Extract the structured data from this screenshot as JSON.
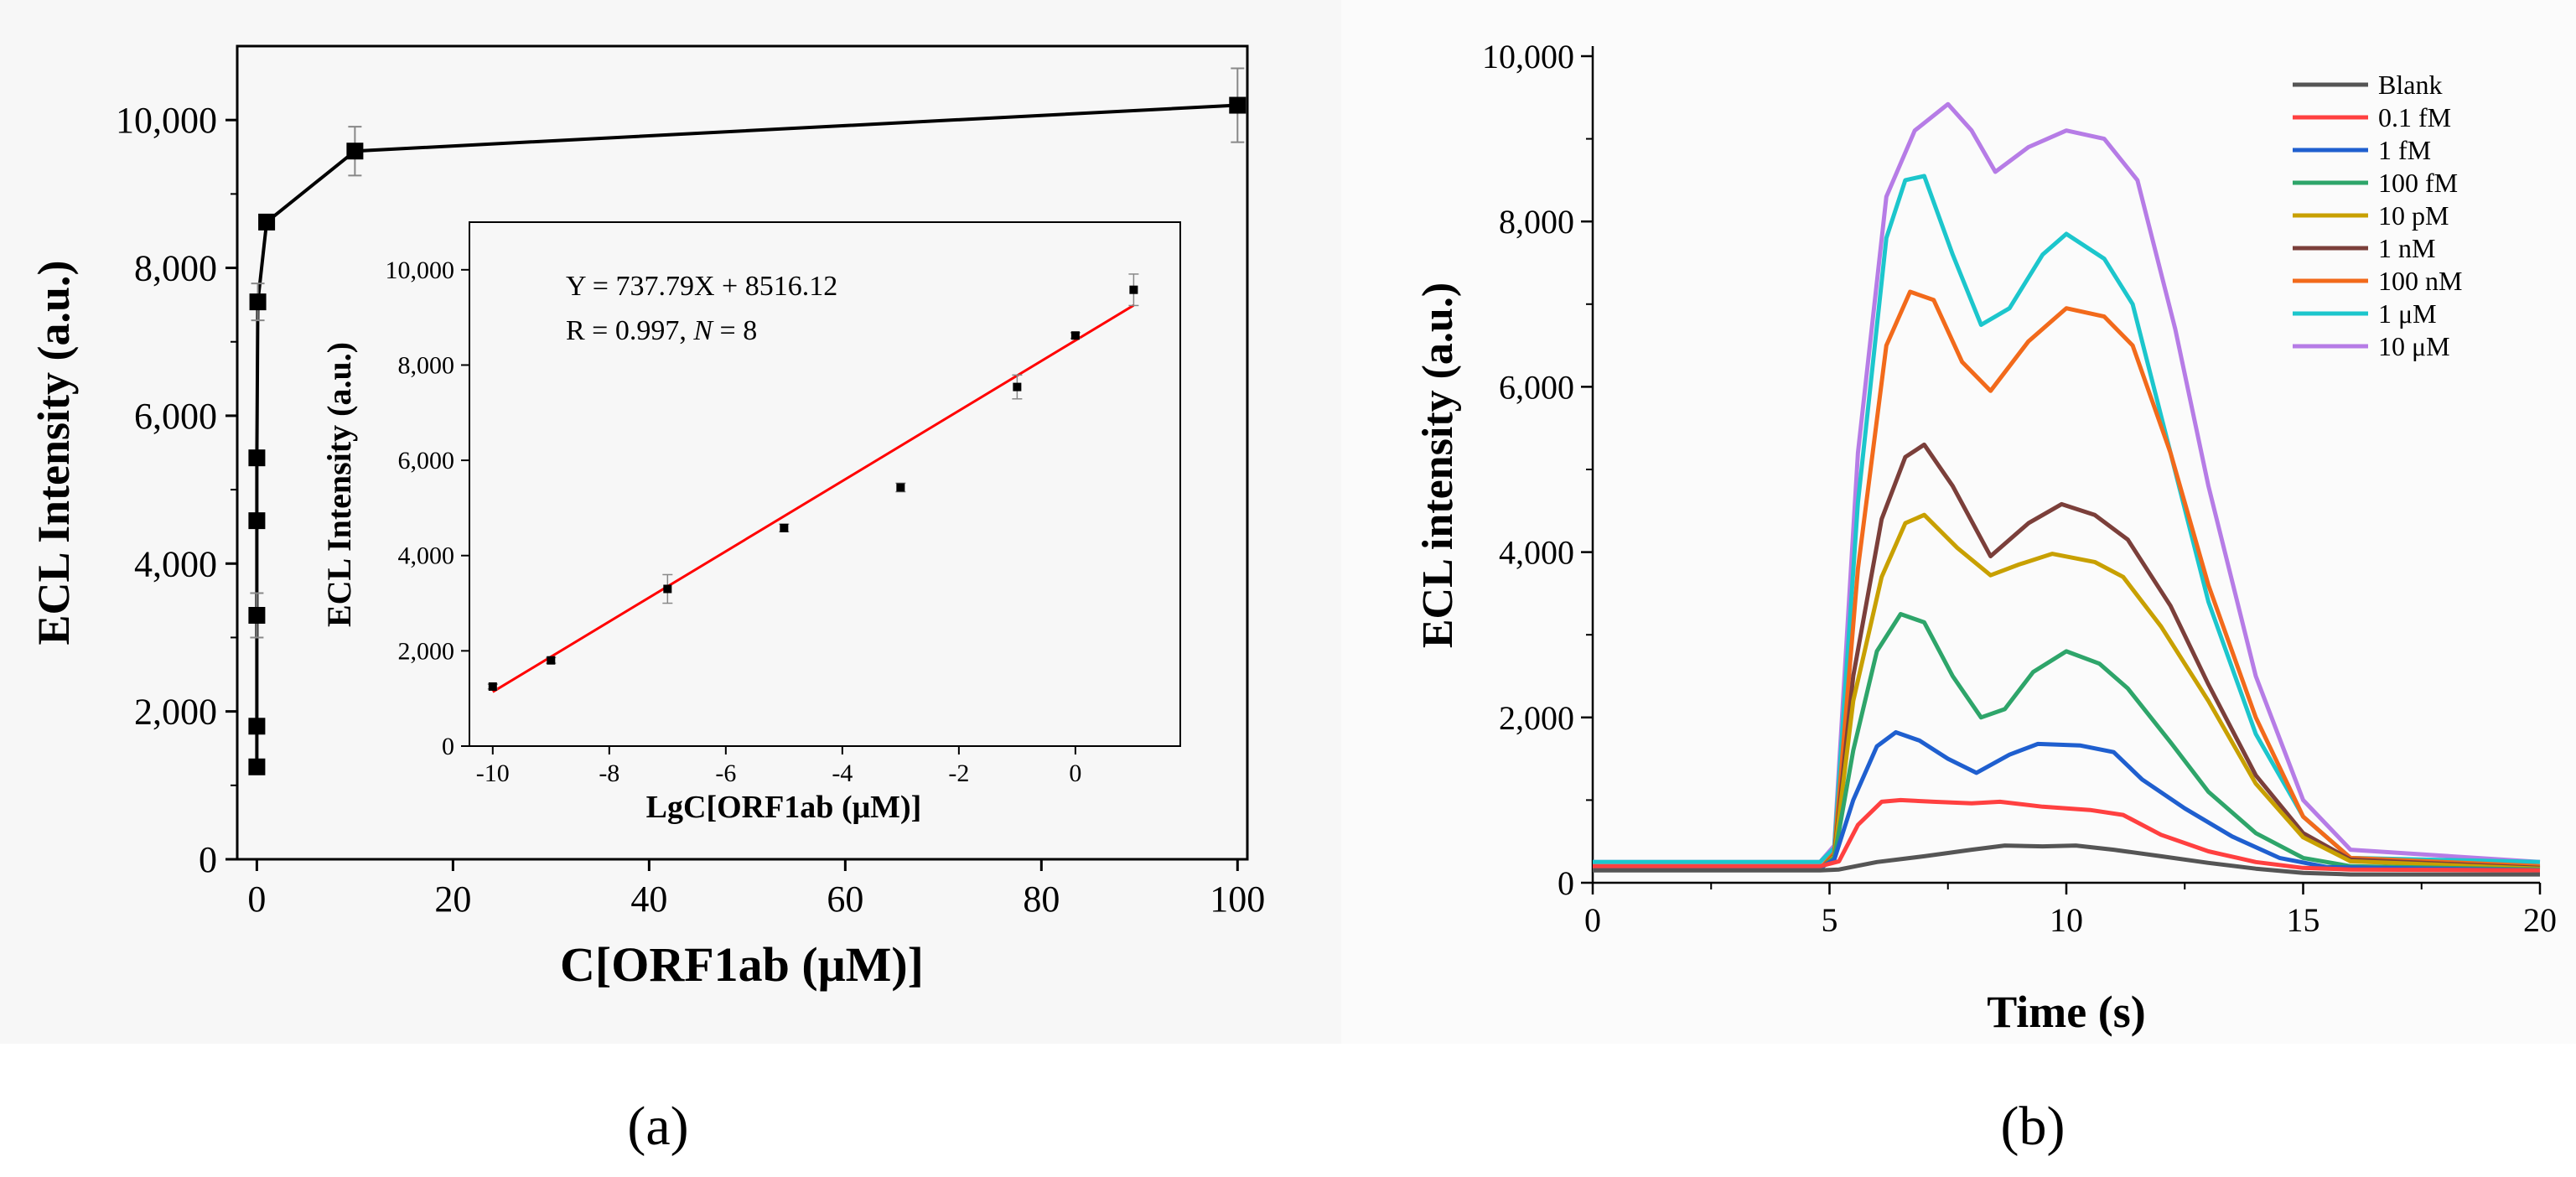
{
  "panel_labels": {
    "a": "(a)",
    "b": "(b)"
  },
  "chart_data": [
    {
      "id": "a-main",
      "type": "line",
      "xlabel": "C[ORF1ab (μM)]",
      "ylabel": "ECL Intensity (a.u.)",
      "xlim": [
        -2,
        101
      ],
      "ylim": [
        0,
        11000
      ],
      "xticks": [
        0,
        20,
        40,
        60,
        80,
        100
      ],
      "yticks": [
        0,
        2000,
        4000,
        6000,
        8000,
        10000
      ],
      "xtick_labels": [
        "0",
        "20",
        "40",
        "60",
        "80",
        "100"
      ],
      "ytick_labels": [
        "0",
        "2,000",
        "4,000",
        "6,000",
        "8,000",
        "10,000"
      ],
      "marker": "square",
      "color": "#000000",
      "x": [
        1e-10,
        1e-09,
        1e-07,
        1e-05,
        0.001,
        0.1,
        1,
        10,
        100
      ],
      "y": [
        1250,
        1800,
        3300,
        4580,
        5430,
        7540,
        8620,
        9580,
        10200
      ],
      "errors": [
        50,
        60,
        300,
        80,
        90,
        250,
        60,
        330,
        500
      ]
    },
    {
      "id": "a-inset",
      "type": "scatter",
      "xlabel": "LgC[ORF1ab (μM)]",
      "ylabel": "ECL Intensity (a.u.)",
      "xlim": [
        -10.4,
        1.8
      ],
      "ylim": [
        0,
        11000
      ],
      "xticks": [
        -10,
        -8,
        -6,
        -4,
        -2,
        0
      ],
      "yticks": [
        0,
        2000,
        4000,
        6000,
        8000,
        10000
      ],
      "xtick_labels": [
        "-10",
        "-8",
        "-6",
        "-4",
        "-2",
        "0"
      ],
      "ytick_labels": [
        "0",
        "2,000",
        "4,000",
        "6,000",
        "8,000",
        "10,000"
      ],
      "x": [
        -10,
        -9,
        -7,
        -5,
        -3,
        -1,
        0,
        1
      ],
      "y": [
        1250,
        1800,
        3300,
        4580,
        5430,
        7540,
        8620,
        9580
      ],
      "errors": [
        50,
        60,
        300,
        80,
        90,
        250,
        60,
        330
      ],
      "fit": {
        "slope": 737.79,
        "intercept": 8516.12,
        "x_range": [
          -10,
          1
        ],
        "color": "#ff0000"
      },
      "annotations": {
        "equation": "Y = 737.79X + 8516.12",
        "r_prefix": "R = 0.997, ",
        "r_var": "N",
        "r_suffix": " = 8"
      }
    },
    {
      "id": "b",
      "type": "line",
      "xlabel": "Time (s)",
      "ylabel": "ECL intensity (a.u.)",
      "xlim": [
        0,
        20
      ],
      "ylim": [
        0,
        10000
      ],
      "xticks": [
        0,
        5,
        10,
        15,
        20
      ],
      "yticks": [
        0,
        2000,
        4000,
        6000,
        8000,
        10000
      ],
      "xtick_labels": [
        "0",
        "5",
        "10",
        "15",
        "20"
      ],
      "ytick_labels": [
        "0",
        "2,000",
        "4,000",
        "6,000",
        "8,000",
        "10,000"
      ],
      "legend_position": "top-right",
      "series": [
        {
          "name": "Blank",
          "color": "#555555",
          "points": [
            [
              0,
              150
            ],
            [
              4.8,
              150
            ],
            [
              5.2,
              160
            ],
            [
              6,
              250
            ],
            [
              7,
              320
            ],
            [
              8,
              400
            ],
            [
              8.7,
              450
            ],
            [
              9.5,
              440
            ],
            [
              10.2,
              450
            ],
            [
              11,
              400
            ],
            [
              12,
              320
            ],
            [
              13,
              240
            ],
            [
              14,
              170
            ],
            [
              15,
              120
            ],
            [
              16,
              100
            ],
            [
              20,
              100
            ]
          ]
        },
        {
          "name": "0.1 fM",
          "color": "#ff4040",
          "points": [
            [
              0,
              200
            ],
            [
              4.8,
              200
            ],
            [
              5.2,
              260
            ],
            [
              5.6,
              700
            ],
            [
              6.1,
              980
            ],
            [
              6.5,
              1000
            ],
            [
              7.2,
              980
            ],
            [
              8,
              960
            ],
            [
              8.6,
              980
            ],
            [
              9.5,
              920
            ],
            [
              10.5,
              880
            ],
            [
              11.2,
              820
            ],
            [
              12,
              580
            ],
            [
              13,
              380
            ],
            [
              14,
              250
            ],
            [
              15,
              180
            ],
            [
              16,
              160
            ],
            [
              20,
              150
            ]
          ]
        },
        {
          "name": "1 fM",
          "color": "#1f5fcf",
          "points": [
            [
              0,
              180
            ],
            [
              4.8,
              180
            ],
            [
              5.1,
              280
            ],
            [
              5.5,
              1000
            ],
            [
              6,
              1650
            ],
            [
              6.4,
              1820
            ],
            [
              6.9,
              1720
            ],
            [
              7.5,
              1500
            ],
            [
              8.1,
              1330
            ],
            [
              8.8,
              1550
            ],
            [
              9.4,
              1680
            ],
            [
              10.3,
              1660
            ],
            [
              11,
              1580
            ],
            [
              11.6,
              1250
            ],
            [
              12.5,
              900
            ],
            [
              13.5,
              560
            ],
            [
              14.5,
              300
            ],
            [
              15.5,
              190
            ],
            [
              20,
              150
            ]
          ]
        },
        {
          "name": "100 fM",
          "color": "#2ea56a",
          "points": [
            [
              0,
              170
            ],
            [
              4.8,
              170
            ],
            [
              5.1,
              300
            ],
            [
              5.5,
              1600
            ],
            [
              6,
              2800
            ],
            [
              6.5,
              3250
            ],
            [
              7,
              3150
            ],
            [
              7.6,
              2500
            ],
            [
              8.2,
              2000
            ],
            [
              8.7,
              2100
            ],
            [
              9.3,
              2550
            ],
            [
              10,
              2800
            ],
            [
              10.7,
              2650
            ],
            [
              11.3,
              2350
            ],
            [
              12.2,
              1700
            ],
            [
              13,
              1100
            ],
            [
              14,
              600
            ],
            [
              15,
              300
            ],
            [
              16,
              200
            ],
            [
              20,
              160
            ]
          ]
        },
        {
          "name": "10 pM",
          "color": "#c8a000",
          "points": [
            [
              0,
              160
            ],
            [
              4.8,
              160
            ],
            [
              5.1,
              320
            ],
            [
              5.5,
              2200
            ],
            [
              6.1,
              3700
            ],
            [
              6.6,
              4350
            ],
            [
              7,
              4450
            ],
            [
              7.7,
              4050
            ],
            [
              8.4,
              3720
            ],
            [
              9,
              3850
            ],
            [
              9.7,
              3980
            ],
            [
              10.6,
              3880
            ],
            [
              11.2,
              3700
            ],
            [
              12,
              3100
            ],
            [
              13,
              2200
            ],
            [
              14,
              1200
            ],
            [
              15,
              550
            ],
            [
              16,
              260
            ],
            [
              20,
              170
            ]
          ]
        },
        {
          "name": "1 nM",
          "color": "#7b3f3a",
          "points": [
            [
              0,
              160
            ],
            [
              4.8,
              160
            ],
            [
              5.1,
              330
            ],
            [
              5.5,
              2500
            ],
            [
              6.1,
              4400
            ],
            [
              6.6,
              5150
            ],
            [
              7,
              5300
            ],
            [
              7.6,
              4800
            ],
            [
              8.4,
              3950
            ],
            [
              9.2,
              4350
            ],
            [
              9.9,
              4580
            ],
            [
              10.6,
              4450
            ],
            [
              11.3,
              4150
            ],
            [
              12.2,
              3350
            ],
            [
              13,
              2400
            ],
            [
              14,
              1300
            ],
            [
              15,
              600
            ],
            [
              16,
              280
            ],
            [
              20,
              180
            ]
          ]
        },
        {
          "name": "100 nM",
          "color": "#f26a1b",
          "points": [
            [
              0,
              170
            ],
            [
              4.8,
              170
            ],
            [
              5.1,
              360
            ],
            [
              5.6,
              3800
            ],
            [
              6.2,
              6500
            ],
            [
              6.7,
              7150
            ],
            [
              7.2,
              7050
            ],
            [
              7.8,
              6300
            ],
            [
              8.4,
              5950
            ],
            [
              9.2,
              6550
            ],
            [
              10,
              6950
            ],
            [
              10.8,
              6850
            ],
            [
              11.4,
              6500
            ],
            [
              12.2,
              5200
            ],
            [
              13,
              3600
            ],
            [
              14,
              2000
            ],
            [
              15,
              800
            ],
            [
              16,
              300
            ],
            [
              20,
              200
            ]
          ]
        },
        {
          "name": "1 μM",
          "color": "#1cc6cc",
          "points": [
            [
              0,
              250
            ],
            [
              4.8,
              250
            ],
            [
              5.1,
              420
            ],
            [
              5.6,
              4600
            ],
            [
              6.2,
              7800
            ],
            [
              6.6,
              8500
            ],
            [
              7,
              8550
            ],
            [
              7.6,
              7600
            ],
            [
              8.2,
              6750
            ],
            [
              8.8,
              6950
            ],
            [
              9.5,
              7600
            ],
            [
              10,
              7850
            ],
            [
              10.8,
              7550
            ],
            [
              11.4,
              7000
            ],
            [
              12.2,
              5200
            ],
            [
              13,
              3400
            ],
            [
              14,
              1800
            ],
            [
              15,
              800
            ],
            [
              16,
              300
            ],
            [
              20,
              250
            ]
          ]
        },
        {
          "name": "10 μM",
          "color": "#b67ce6",
          "points": [
            [
              0,
              250
            ],
            [
              4.8,
              250
            ],
            [
              5.1,
              450
            ],
            [
              5.6,
              5200
            ],
            [
              6.2,
              8300
            ],
            [
              6.8,
              9100
            ],
            [
              7.5,
              9420
            ],
            [
              8,
              9100
            ],
            [
              8.5,
              8600
            ],
            [
              9.2,
              8900
            ],
            [
              10,
              9100
            ],
            [
              10.8,
              9000
            ],
            [
              11.5,
              8500
            ],
            [
              12.3,
              6700
            ],
            [
              13,
              4800
            ],
            [
              14,
              2500
            ],
            [
              15,
              1000
            ],
            [
              16,
              400
            ],
            [
              20,
              250
            ]
          ]
        }
      ]
    }
  ]
}
